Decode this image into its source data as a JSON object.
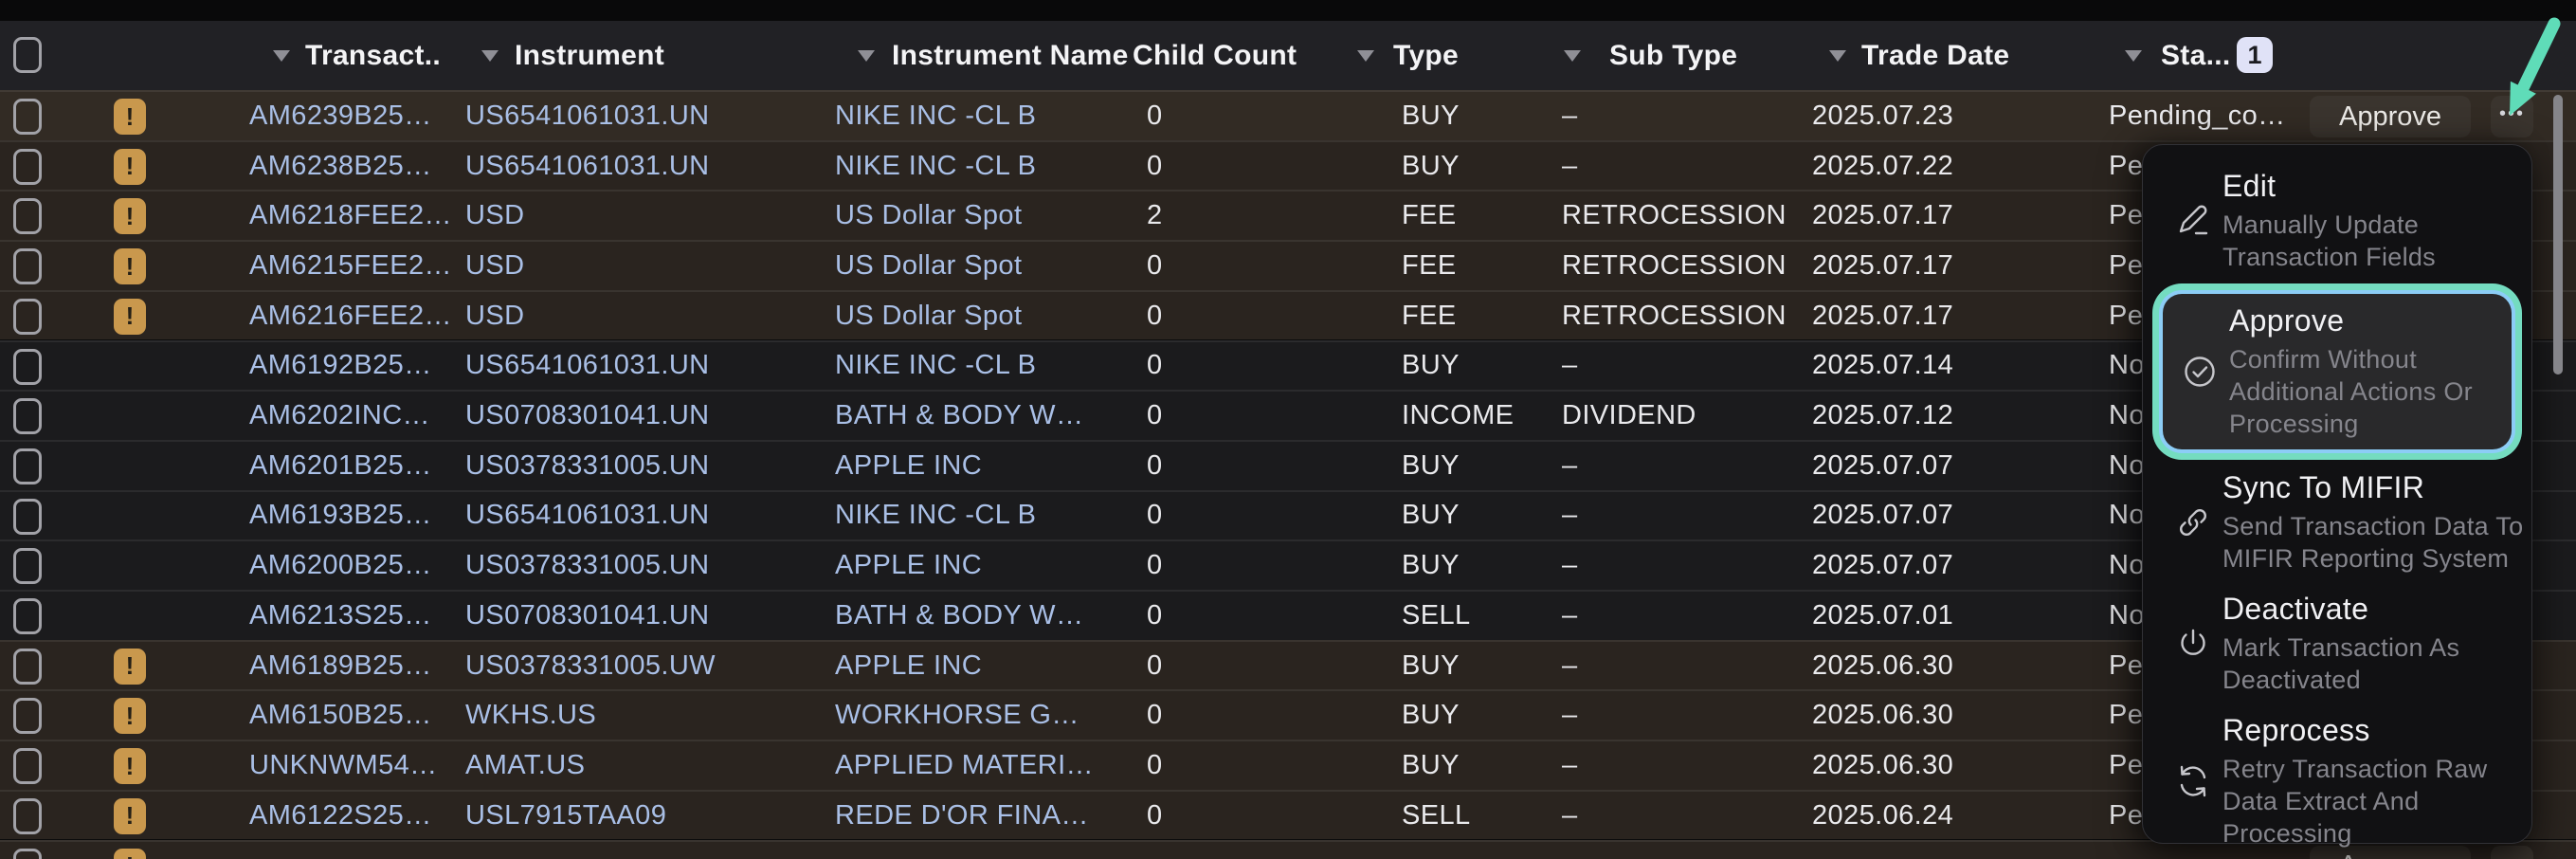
{
  "table": {
    "columns": [
      {
        "label": "Transact..",
        "sortable": true
      },
      {
        "label": "Instrument",
        "sortable": true
      },
      {
        "label": "Instrument Name",
        "sortable": true
      },
      {
        "label": "Child Count",
        "sortable": false
      },
      {
        "label": "Type",
        "sortable": true
      },
      {
        "label": "Sub Type",
        "sortable": true
      },
      {
        "label": "Trade Date",
        "sortable": true
      },
      {
        "label": "Sta...",
        "sortable": true,
        "filter_badge": "1"
      }
    ],
    "rows": [
      {
        "warning": true,
        "hovered": true,
        "transaction_id": "AM6239B25…",
        "instrument": "US6541061031.UN",
        "instrument_name": "NIKE INC -CL B",
        "child_count": "0",
        "type": "BUY",
        "sub_type": "–",
        "trade_date": "2025.07.23",
        "status": "Pending_co…"
      },
      {
        "warning": true,
        "hovered": false,
        "transaction_id": "AM6238B25…",
        "instrument": "US6541061031.UN",
        "instrument_name": "NIKE INC -CL B",
        "child_count": "0",
        "type": "BUY",
        "sub_type": "–",
        "trade_date": "2025.07.22",
        "status": "Pen"
      },
      {
        "warning": true,
        "hovered": false,
        "transaction_id": "AM6218FEE2…",
        "instrument": "USD",
        "instrument_name": "US Dollar Spot",
        "child_count": "2",
        "type": "FEE",
        "sub_type": "RETROCESSION",
        "trade_date": "2025.07.17",
        "status": "Pen"
      },
      {
        "warning": true,
        "hovered": false,
        "transaction_id": "AM6215FEE2…",
        "instrument": "USD",
        "instrument_name": "US Dollar Spot",
        "child_count": "0",
        "type": "FEE",
        "sub_type": "RETROCESSION",
        "trade_date": "2025.07.17",
        "status": "Pen"
      },
      {
        "warning": true,
        "hovered": false,
        "transaction_id": "AM6216FEE2…",
        "instrument": "USD",
        "instrument_name": "US Dollar Spot",
        "child_count": "0",
        "type": "FEE",
        "sub_type": "RETROCESSION",
        "trade_date": "2025.07.17",
        "status": "Pen"
      },
      {
        "warning": false,
        "hovered": false,
        "transaction_id": "AM6192B25…",
        "instrument": "US6541061031.UN",
        "instrument_name": "NIKE INC -CL B",
        "child_count": "0",
        "type": "BUY",
        "sub_type": "–",
        "trade_date": "2025.07.14",
        "status": "No"
      },
      {
        "warning": false,
        "hovered": false,
        "transaction_id": "AM6202INC…",
        "instrument": "US0708301041.UN",
        "instrument_name": "BATH & BODY W…",
        "child_count": "0",
        "type": "INCOME",
        "sub_type": "DIVIDEND",
        "trade_date": "2025.07.12",
        "status": "No"
      },
      {
        "warning": false,
        "hovered": false,
        "transaction_id": "AM6201B25…",
        "instrument": "US0378331005.UN",
        "instrument_name": "APPLE INC",
        "child_count": "0",
        "type": "BUY",
        "sub_type": "–",
        "trade_date": "2025.07.07",
        "status": "No"
      },
      {
        "warning": false,
        "hovered": false,
        "transaction_id": "AM6193B25…",
        "instrument": "US6541061031.UN",
        "instrument_name": "NIKE INC -CL B",
        "child_count": "0",
        "type": "BUY",
        "sub_type": "–",
        "trade_date": "2025.07.07",
        "status": "No"
      },
      {
        "warning": false,
        "hovered": false,
        "transaction_id": "AM6200B25…",
        "instrument": "US0378331005.UN",
        "instrument_name": "APPLE INC",
        "child_count": "0",
        "type": "BUY",
        "sub_type": "–",
        "trade_date": "2025.07.07",
        "status": "No"
      },
      {
        "warning": false,
        "hovered": false,
        "transaction_id": "AM6213S25…",
        "instrument": "US0708301041.UN",
        "instrument_name": "BATH & BODY W…",
        "child_count": "0",
        "type": "SELL",
        "sub_type": "–",
        "trade_date": "2025.07.01",
        "status": "No"
      },
      {
        "warning": true,
        "hovered": false,
        "transaction_id": "AM6189B25…",
        "instrument": "US0378331005.UW",
        "instrument_name": "APPLE INC",
        "child_count": "0",
        "type": "BUY",
        "sub_type": "–",
        "trade_date": "2025.06.30",
        "status": "Pen"
      },
      {
        "warning": true,
        "hovered": false,
        "transaction_id": "AM6150B25…",
        "instrument": "WKHS.US",
        "instrument_name": "WORKHORSE G…",
        "child_count": "0",
        "type": "BUY",
        "sub_type": "–",
        "trade_date": "2025.06.30",
        "status": "Pen"
      },
      {
        "warning": true,
        "hovered": false,
        "transaction_id": "UNKNWM54…",
        "instrument": "AMAT.US",
        "instrument_name": "APPLIED MATERI…",
        "child_count": "0",
        "type": "BUY",
        "sub_type": "–",
        "trade_date": "2025.06.30",
        "status": "Pen"
      },
      {
        "warning": true,
        "hovered": false,
        "transaction_id": "AM6122S25…",
        "instrument": "USL7915TAA09",
        "instrument_name": "REDE D'OR FINA…",
        "child_count": "0",
        "type": "SELL",
        "sub_type": "–",
        "trade_date": "2025.06.24",
        "status": "Pen"
      }
    ],
    "partial_row": {
      "warning": true
    }
  },
  "row_actions": {
    "approve_label": "Approve",
    "more_label": "•••"
  },
  "context_menu": {
    "items": [
      {
        "icon": "pencil-icon",
        "title": "Edit",
        "subtitle_lines": [
          "Manually Update",
          "Transaction Fields"
        ],
        "highlighted": false
      },
      {
        "icon": "check-circle-icon",
        "title": "Approve",
        "subtitle_lines": [
          "Confirm Without",
          "Additional Actions Or",
          "Processing"
        ],
        "highlighted": true
      },
      {
        "icon": "link-icon",
        "title": "Sync To MIFIR",
        "subtitle_lines": [
          "Send Transaction Data To",
          "MIFIR Reporting System"
        ],
        "highlighted": false
      },
      {
        "icon": "power-icon",
        "title": "Deactivate",
        "subtitle_lines": [
          "Mark Transaction As",
          "Deactivated"
        ],
        "highlighted": false
      },
      {
        "icon": "refresh-icon",
        "title": "Reprocess",
        "subtitle_lines": [
          "Retry Transaction Raw",
          "Data Extract And",
          "Processing"
        ],
        "highlighted": false
      }
    ]
  },
  "colors": {
    "accent_teal": "#5fdcb8",
    "highlight_ring_outer": "#74dcc0",
    "highlight_ring_inner": "#8ccdf6",
    "warning_badge": "#c9984d",
    "link_text": "#a9bfe6",
    "filter_badge_bg": "#e0e2f7",
    "header_bg": "#212125",
    "warning_row_bg": "#2a241f",
    "row_bg": "#1b1b1d"
  }
}
